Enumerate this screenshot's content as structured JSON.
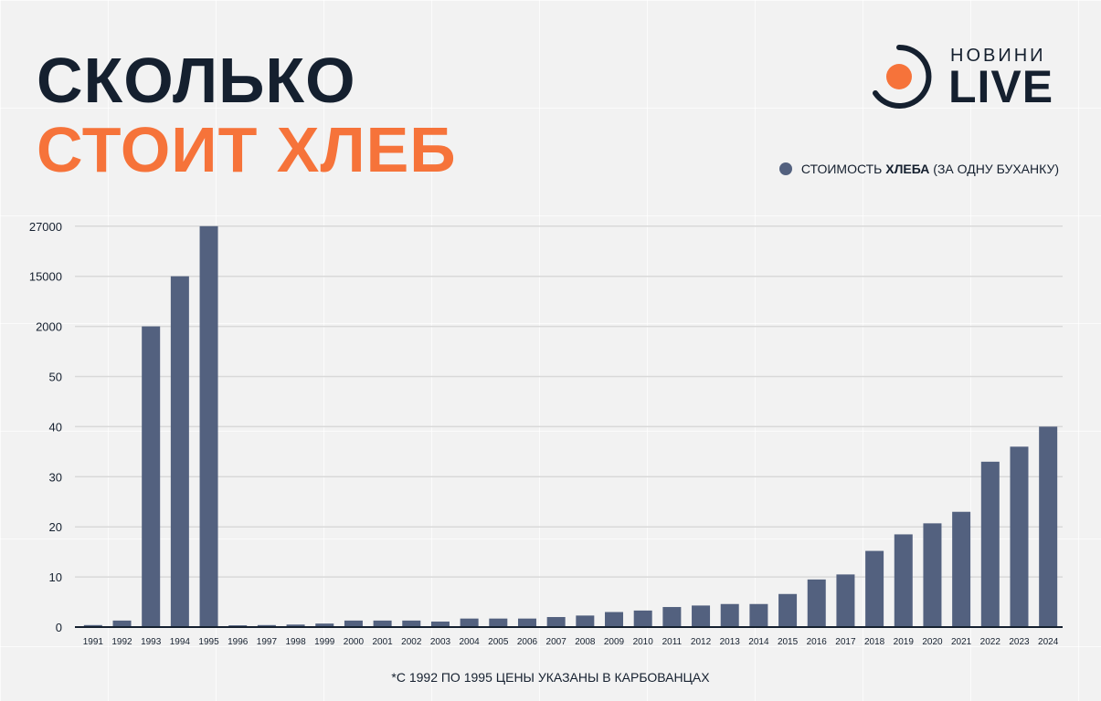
{
  "title": {
    "line1": "СКОЛЬКО",
    "line2": "СТОИТ ХЛЕБ"
  },
  "logo": {
    "small": "НОВИНИ",
    "big": "LIVE"
  },
  "legend": {
    "prefix": "СТОИМОСТЬ ",
    "bold": "ХЛЕБА",
    "suffix": " (ЗА ОДНУ БУХАНКУ)"
  },
  "footnote": "*С 1992 ПО 1995 ЦЕНЫ УКАЗАНЫ В КАРБОВАНЦАХ",
  "colors": {
    "bar": "#53617f",
    "title_dark": "#15202f",
    "title_accent": "#f6733a",
    "gridline": "#d9d9d9"
  },
  "chart_data": {
    "type": "bar",
    "scale": "piecewise (tick labels 0, 10, 20, 30, 40, 50, 2000, 15000, 27000 at equal spacing)",
    "y_ticks": [
      0,
      10,
      20,
      30,
      40,
      50,
      2000,
      15000,
      27000
    ],
    "categories": [
      "1991",
      "1992",
      "1993",
      "1994",
      "1995",
      "1996",
      "1997",
      "1998",
      "1999",
      "2000",
      "2001",
      "2002",
      "2003",
      "2004",
      "2005",
      "2006",
      "2007",
      "2008",
      "2009",
      "2010",
      "2011",
      "2012",
      "2013",
      "2014",
      "2015",
      "2016",
      "2017",
      "2018",
      "2019",
      "2020",
      "2021",
      "2022",
      "2023",
      "2024"
    ],
    "values": [
      0.4,
      1.3,
      2000,
      15000,
      27000,
      0.35,
      0.4,
      0.5,
      0.7,
      1.3,
      1.3,
      1.3,
      1.1,
      1.7,
      1.7,
      1.7,
      2.0,
      2.3,
      3.0,
      3.3,
      4.0,
      4.3,
      4.6,
      4.6,
      6.6,
      9.5,
      10.5,
      15.2,
      18.5,
      20.7,
      23.0,
      33.0,
      36.0,
      40.0
    ],
    "grid": true,
    "legend_position": "top-right"
  }
}
